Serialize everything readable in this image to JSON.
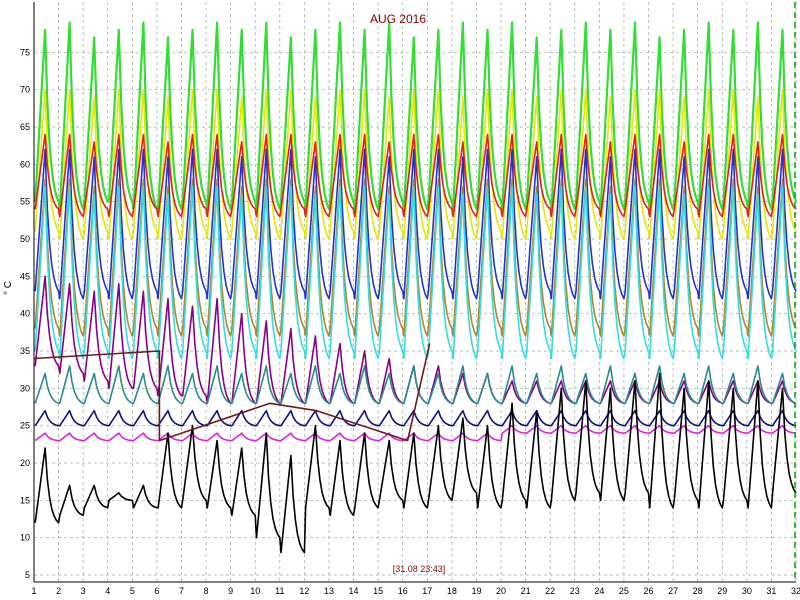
{
  "chart_data": {
    "type": "line",
    "title": "AUG 2016",
    "ylabel": "° C",
    "xlabel": "",
    "status": "[31.08 23:43]",
    "xlim": [
      1,
      32
    ],
    "ylim": [
      5,
      80
    ],
    "grid": true,
    "x_ticks": [
      "1",
      "2",
      "3",
      "4",
      "5",
      "6",
      "7",
      "8",
      "9",
      "10",
      "11",
      "12",
      "13",
      "14",
      "15",
      "16",
      "17",
      "18",
      "19",
      "20",
      "21",
      "22",
      "23",
      "24",
      "25",
      "26",
      "27",
      "28",
      "29",
      "30",
      "31",
      "32"
    ],
    "y_ticks": [
      "5",
      "10",
      "15",
      "20",
      "25",
      "30",
      "35",
      "40",
      "45",
      "50",
      "55",
      "60",
      "65",
      "70",
      "75"
    ],
    "colors": {
      "background": "#ffffff",
      "grid": "#9aa79a",
      "title": "#8b0000",
      "cursor": "#00aa00"
    },
    "series": [
      {
        "color": "#33dd33",
        "peaks": [
          78,
          79,
          77,
          78,
          79,
          77,
          78,
          79,
          78,
          79,
          77,
          78,
          79,
          78,
          79,
          77,
          78,
          79,
          78,
          79,
          77,
          78,
          79,
          78,
          79,
          77,
          78,
          79,
          78,
          79,
          78
        ],
        "troughs": [
          55,
          54,
          55,
          55,
          54,
          54,
          55,
          54,
          55,
          54,
          55,
          54,
          55,
          54,
          55,
          54,
          55,
          54,
          55,
          54,
          55,
          54,
          55,
          54,
          55,
          54,
          55,
          54,
          55,
          54,
          55
        ]
      },
      {
        "color": "#e6e600",
        "peaks": [
          70,
          70,
          69,
          70,
          70,
          69,
          70,
          70,
          69,
          70,
          70,
          69,
          70,
          70,
          69,
          70,
          70,
          69,
          70,
          70,
          69,
          70,
          70,
          69,
          70,
          70,
          69,
          70,
          70,
          69,
          70
        ],
        "troughs": [
          51,
          50,
          51,
          50,
          51,
          50,
          51,
          50,
          51,
          50,
          51,
          50,
          51,
          50,
          51,
          50,
          51,
          50,
          51,
          50,
          51,
          50,
          51,
          50,
          51,
          50,
          51,
          50,
          51,
          50,
          51
        ]
      },
      {
        "color": "#e02020",
        "peaks": [
          64,
          64,
          63,
          64,
          64,
          63,
          64,
          64,
          63,
          64,
          64,
          63,
          64,
          64,
          63,
          64,
          64,
          63,
          64,
          64,
          63,
          64,
          64,
          63,
          64,
          64,
          63,
          64,
          64,
          63,
          64
        ],
        "troughs": [
          54,
          53,
          54,
          53,
          54,
          53,
          54,
          53,
          54,
          53,
          54,
          53,
          54,
          53,
          54,
          53,
          54,
          53,
          54,
          53,
          54,
          53,
          54,
          53,
          54,
          53,
          54,
          53,
          54,
          53,
          54
        ]
      },
      {
        "color": "#2233cc",
        "peaks": [
          62,
          62,
          61,
          62,
          62,
          61,
          62,
          62,
          61,
          62,
          62,
          61,
          62,
          62,
          61,
          62,
          62,
          61,
          62,
          62,
          61,
          62,
          62,
          61,
          62,
          62,
          61,
          62,
          62,
          61,
          62
        ],
        "troughs": [
          43,
          42,
          43,
          42,
          43,
          42,
          43,
          42,
          43,
          42,
          43,
          42,
          43,
          42,
          43,
          42,
          43,
          42,
          43,
          42,
          43,
          42,
          43,
          42,
          43,
          42,
          43,
          42,
          43,
          42,
          43
        ]
      },
      {
        "color": "#aa8833",
        "peaks": [
          58,
          58,
          57,
          58,
          58,
          57,
          58,
          58,
          57,
          58,
          58,
          57,
          58,
          58,
          57,
          58,
          58,
          57,
          58,
          58,
          57,
          58,
          58,
          57,
          58,
          58,
          57,
          58,
          58,
          57,
          58
        ],
        "troughs": [
          38,
          37,
          38,
          37,
          38,
          37,
          38,
          37,
          38,
          37,
          38,
          37,
          38,
          37,
          38,
          37,
          38,
          37,
          38,
          37,
          38,
          37,
          38,
          37,
          38,
          37,
          38,
          37,
          38,
          37,
          38
        ]
      },
      {
        "color": "#33dddd",
        "peaks": [
          57,
          57,
          56,
          57,
          57,
          56,
          57,
          57,
          56,
          57,
          57,
          56,
          57,
          57,
          56,
          57,
          57,
          56,
          57,
          57,
          56,
          57,
          57,
          56,
          57,
          57,
          56,
          57,
          57,
          56,
          57
        ],
        "troughs": [
          35,
          34,
          35,
          34,
          35,
          34,
          35,
          34,
          35,
          34,
          35,
          34,
          35,
          34,
          35,
          34,
          35,
          34,
          35,
          34,
          35,
          34,
          35,
          34,
          35,
          34,
          35,
          34,
          35,
          34,
          35
        ]
      },
      {
        "color": "#880088",
        "peaks": [
          45,
          44,
          43,
          44,
          43,
          42,
          41,
          42,
          40,
          39,
          38,
          37,
          36,
          35,
          34,
          33,
          33,
          32,
          32,
          31,
          31,
          31,
          31,
          31,
          31,
          31,
          31,
          31,
          31,
          31,
          31
        ],
        "troughs": [
          33,
          32,
          31,
          30,
          30,
          29,
          29,
          28,
          28,
          28,
          28,
          28,
          28,
          28,
          28,
          28,
          28,
          28,
          28,
          28,
          28,
          28,
          28,
          28,
          28,
          28,
          28,
          28,
          28,
          28,
          28
        ]
      },
      {
        "color": "#2a8a8a",
        "peaks": [
          32,
          33,
          32,
          33,
          32,
          33,
          32,
          33,
          32,
          33,
          32,
          33,
          32,
          33,
          32,
          33,
          32,
          33,
          32,
          33,
          32,
          33,
          32,
          33,
          32,
          33,
          32,
          33,
          32,
          33,
          32
        ],
        "troughs": [
          28,
          28,
          28,
          28,
          28,
          28,
          28,
          28,
          28,
          28,
          28,
          28,
          28,
          28,
          28,
          28,
          28,
          28,
          28,
          28,
          28,
          28,
          28,
          28,
          28,
          28,
          28,
          28,
          28,
          28,
          28
        ]
      },
      {
        "color": "#101080",
        "peaks": [
          27,
          27,
          27,
          27,
          27,
          27,
          27,
          27,
          27,
          27,
          27,
          27,
          27,
          27,
          27,
          27,
          27,
          27,
          27,
          27,
          27,
          27,
          27,
          27,
          27,
          27,
          27,
          27,
          27,
          27,
          27
        ],
        "troughs": [
          25,
          25,
          25,
          25,
          25,
          25,
          25,
          25,
          25,
          25,
          25,
          25,
          25,
          25,
          25,
          25,
          25,
          25,
          25,
          25,
          25,
          25,
          25,
          25,
          25,
          25,
          25,
          25,
          25,
          25,
          25
        ]
      },
      {
        "color": "#dd22dd",
        "peaks": [
          24,
          24,
          24,
          24,
          24,
          24,
          24,
          24,
          24,
          24,
          24,
          24,
          24,
          24,
          24,
          24,
          24,
          24,
          24,
          25,
          25,
          25,
          25,
          25,
          25,
          25,
          25,
          25,
          25,
          25,
          25
        ],
        "troughs": [
          23,
          23,
          23,
          23,
          23,
          23,
          23,
          23,
          23,
          23,
          23,
          23,
          23,
          23,
          23,
          23,
          23,
          23,
          23,
          24,
          24,
          24,
          24,
          24,
          24,
          24,
          24,
          24,
          24,
          24,
          24
        ]
      },
      {
        "color": "#000000",
        "peaks": [
          22,
          17,
          17,
          16,
          17,
          24,
          25,
          23,
          22,
          24,
          21,
          25,
          23,
          24,
          23,
          24,
          25,
          26,
          25,
          28,
          27,
          30,
          31,
          30,
          31,
          32,
          30,
          31,
          30,
          31,
          30
        ],
        "troughs": [
          12,
          13,
          14,
          15,
          14,
          14,
          15,
          14,
          13,
          10,
          8,
          14,
          13,
          14,
          15,
          14,
          15,
          16,
          14,
          15,
          14,
          15,
          16,
          15,
          16,
          14,
          15,
          14,
          15,
          14,
          16
        ]
      },
      {
        "color": "#6b1a1a",
        "points": [
          [
            1,
            34
          ],
          [
            6.1,
            35
          ],
          [
            6.1,
            23
          ],
          [
            10.6,
            28
          ],
          [
            12.5,
            27
          ],
          [
            16.2,
            23
          ],
          [
            17.1,
            36
          ]
        ]
      }
    ]
  }
}
